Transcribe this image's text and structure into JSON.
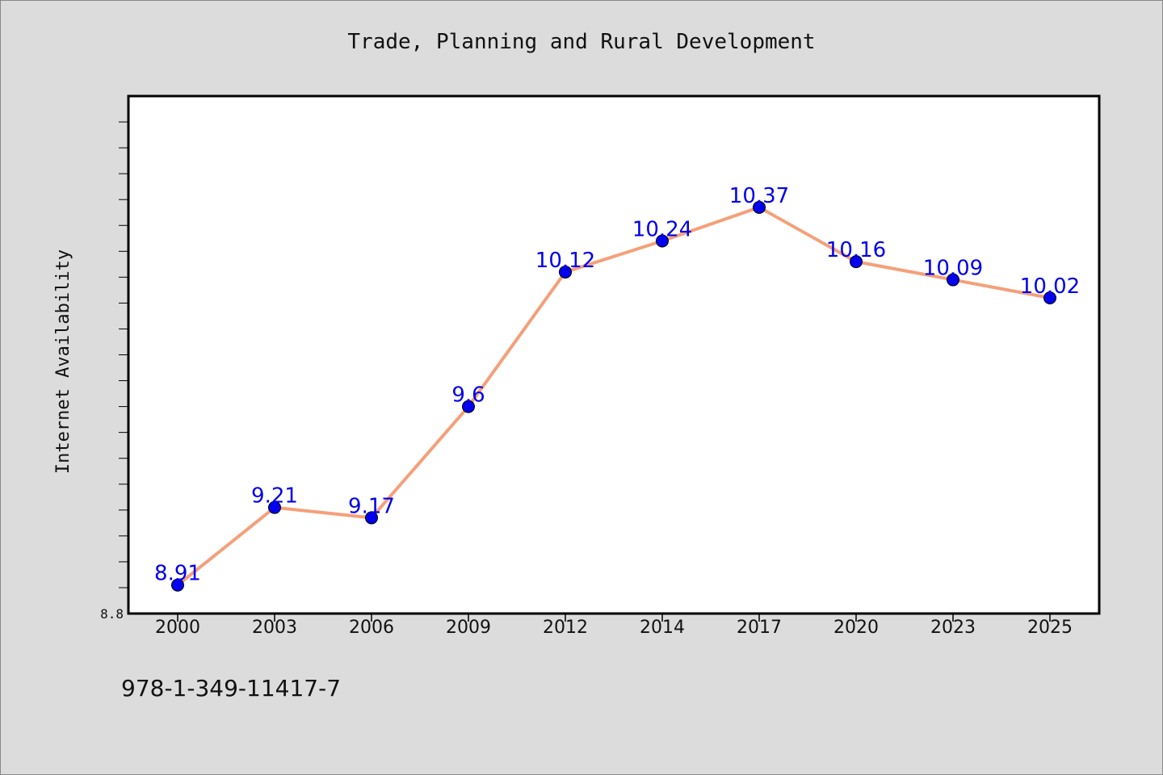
{
  "chart_data": {
    "type": "line",
    "title": "Trade, Planning and Rural Development",
    "ylabel": "Internet Availability",
    "xlabel": "",
    "categories": [
      "2000",
      "2003",
      "2006",
      "2009",
      "2012",
      "2014",
      "2017",
      "2020",
      "2023",
      "2025"
    ],
    "series": [
      {
        "values": [
          8.91,
          9.21,
          9.17,
          9.6,
          10.12,
          10.24,
          10.37,
          10.16,
          10.09,
          10.02
        ],
        "labels": [
          "8.91",
          "9.21",
          "9.17",
          "9.6",
          "10.12",
          "10.24",
          "10.37",
          "10.16",
          "10.09",
          "10.02"
        ]
      }
    ],
    "ylim": [
      8.8,
      10.8
    ],
    "ytick_labels": [
      "8.8"
    ],
    "grid": false,
    "colors": {
      "line": "#f4a07a",
      "marker": "#0000ee",
      "data_label": "#0000ee",
      "plot_background": "#ffffff",
      "page_background": "#dcdcdc"
    }
  },
  "footer": {
    "isbn": "978-1-349-11417-7"
  }
}
